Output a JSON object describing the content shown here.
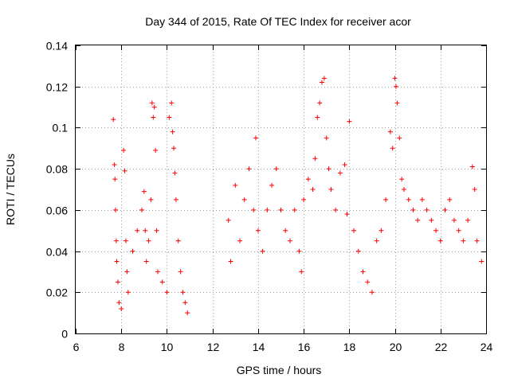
{
  "chart_data": {
    "type": "scatter",
    "title": "Day 344 of 2015, Rate Of TEC Index for receiver acor",
    "xlabel": "GPS time / hours",
    "ylabel": "ROTI / TECUs",
    "xlim": [
      6,
      24
    ],
    "ylim": [
      0,
      0.14
    ],
    "xticks": [
      6,
      8,
      10,
      12,
      14,
      16,
      18,
      20,
      22,
      24
    ],
    "yticks": [
      0,
      0.02,
      0.04,
      0.06,
      0.08,
      0.1,
      0.12,
      0.14
    ],
    "xtick_labels": [
      "6",
      "8",
      "10",
      "12",
      "14",
      "16",
      "18",
      "20",
      "22",
      "24"
    ],
    "ytick_labels": [
      "0",
      "0.02",
      "0.04",
      "0.06",
      "0.08",
      "0.1",
      "0.12",
      "0.14"
    ],
    "grid": true,
    "marker": "+",
    "color": "#ff0000",
    "series": [
      {
        "x": [
          7.65,
          7.7,
          7.72,
          7.75,
          7.78,
          7.8,
          7.85,
          7.9,
          8.0,
          8.1,
          8.15,
          8.2,
          8.25,
          8.3,
          8.5,
          8.7,
          8.9,
          9.0,
          9.05,
          9.1,
          9.2,
          9.3,
          9.35,
          9.4,
          9.45,
          9.5,
          9.55,
          9.6,
          9.8,
          10.0,
          10.1,
          10.2,
          10.25,
          10.3,
          10.35,
          10.4,
          10.5,
          10.6,
          10.7,
          10.8,
          10.9,
          12.7,
          12.8,
          13.0,
          13.2,
          13.4,
          13.6,
          13.8,
          13.9,
          14.0,
          14.2,
          14.4,
          14.6,
          14.8,
          15.0,
          15.2,
          15.4,
          15.6,
          15.8,
          15.9,
          16.0,
          16.2,
          16.4,
          16.5,
          16.6,
          16.7,
          16.8,
          16.9,
          17.0,
          17.1,
          17.2,
          17.4,
          17.6,
          17.8,
          17.9,
          18.0,
          18.2,
          18.4,
          18.6,
          18.8,
          19.0,
          19.2,
          19.4,
          19.6,
          19.8,
          19.9,
          20.0,
          20.05,
          20.1,
          20.2,
          20.3,
          20.4,
          20.6,
          20.8,
          21.0,
          21.2,
          21.4,
          21.6,
          21.8,
          22.0,
          22.2,
          22.4,
          22.6,
          22.8,
          23.0,
          23.2,
          23.4,
          23.5,
          23.6,
          23.8
        ],
        "y": [
          0.104,
          0.082,
          0.075,
          0.06,
          0.045,
          0.035,
          0.025,
          0.015,
          0.012,
          0.089,
          0.079,
          0.045,
          0.03,
          0.02,
          0.04,
          0.05,
          0.06,
          0.069,
          0.05,
          0.035,
          0.045,
          0.065,
          0.112,
          0.105,
          0.11,
          0.089,
          0.05,
          0.03,
          0.025,
          0.02,
          0.105,
          0.112,
          0.098,
          0.09,
          0.078,
          0.065,
          0.045,
          0.03,
          0.02,
          0.015,
          0.01,
          0.055,
          0.035,
          0.072,
          0.045,
          0.065,
          0.08,
          0.06,
          0.095,
          0.05,
          0.04,
          0.06,
          0.072,
          0.08,
          0.06,
          0.05,
          0.045,
          0.06,
          0.04,
          0.03,
          0.065,
          0.075,
          0.07,
          0.085,
          0.105,
          0.112,
          0.122,
          0.124,
          0.095,
          0.08,
          0.07,
          0.06,
          0.078,
          0.082,
          0.058,
          0.103,
          0.05,
          0.04,
          0.03,
          0.025,
          0.02,
          0.045,
          0.05,
          0.065,
          0.098,
          0.09,
          0.124,
          0.12,
          0.112,
          0.095,
          0.075,
          0.07,
          0.065,
          0.06,
          0.055,
          0.065,
          0.06,
          0.055,
          0.05,
          0.045,
          0.06,
          0.065,
          0.055,
          0.05,
          0.045,
          0.055,
          0.081,
          0.07,
          0.045,
          0.035
        ]
      }
    ]
  }
}
